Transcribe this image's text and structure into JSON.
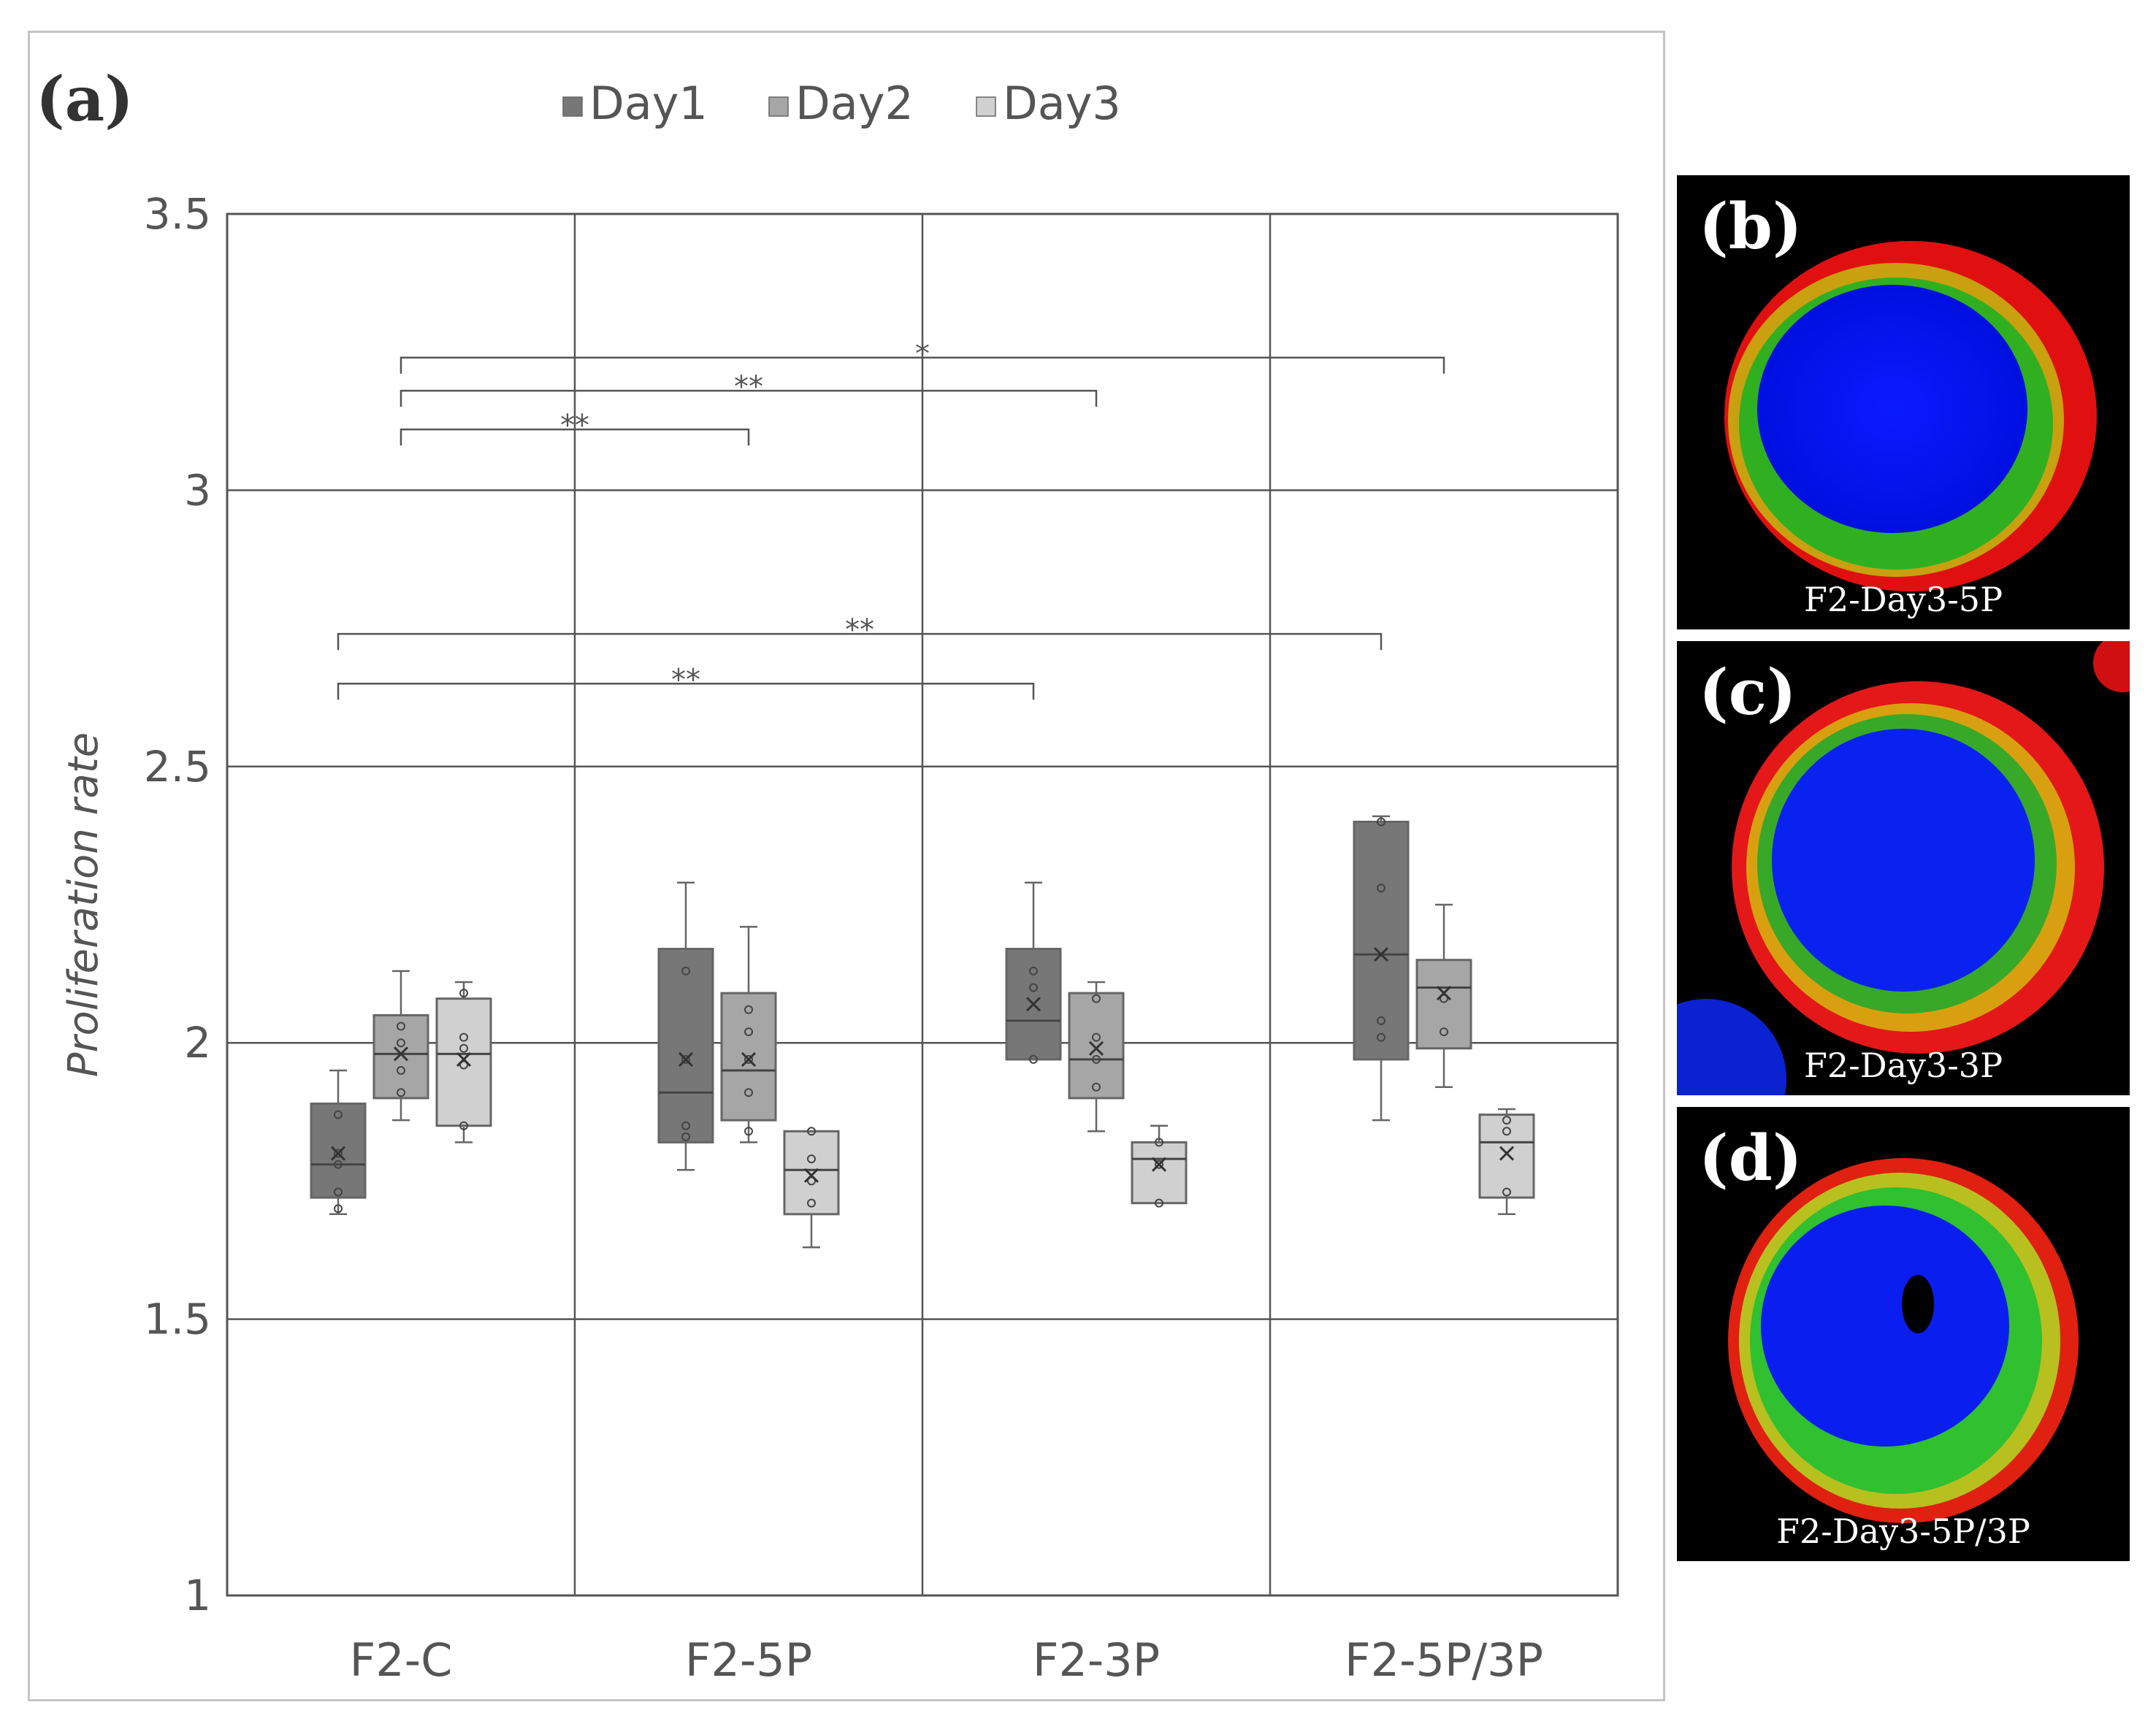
{
  "panel_label": "(a)",
  "chart_data": {
    "type": "box",
    "xlabel": "",
    "ylabel": "Proliferation rate",
    "ylim": [
      1,
      3.5
    ],
    "yticks": [
      "1",
      "1.5",
      "2",
      "2.5",
      "3",
      "3.5"
    ],
    "categories": [
      "F2-C",
      "F2-5P",
      "F2-3P",
      "F2-5P/3P"
    ],
    "grid": true,
    "legend_position": "top",
    "series": [
      {
        "name": "Day1",
        "color": "#777777",
        "boxes": [
          {
            "min": 1.69,
            "q1": 1.72,
            "median": 1.78,
            "q3": 1.89,
            "max": 1.95,
            "mean": 1.8,
            "points": [
              1.7,
              1.73,
              1.78,
              1.8,
              1.87
            ]
          },
          {
            "min": 1.77,
            "q1": 1.82,
            "median": 1.91,
            "q3": 2.17,
            "max": 2.29,
            "mean": 1.97,
            "points": [
              1.83,
              1.85,
              1.97,
              2.13
            ]
          },
          {
            "min": 1.97,
            "q1": 1.97,
            "median": 2.04,
            "q3": 2.17,
            "max": 2.29,
            "mean": 2.07,
            "points": [
              1.97,
              2.1,
              2.13
            ]
          },
          {
            "min": 1.86,
            "q1": 1.97,
            "median": 2.16,
            "q3": 2.4,
            "max": 2.41,
            "mean": 2.16,
            "points": [
              2.01,
              2.04,
              2.28,
              2.4
            ]
          }
        ]
      },
      {
        "name": "Day2",
        "color": "#a6a6a6",
        "boxes": [
          {
            "min": 1.86,
            "q1": 1.9,
            "median": 1.98,
            "q3": 2.05,
            "max": 2.13,
            "mean": 1.98,
            "points": [
              1.91,
              1.95,
              2.0,
              2.03
            ]
          },
          {
            "min": 1.82,
            "q1": 1.86,
            "median": 1.95,
            "q3": 2.09,
            "max": 2.21,
            "mean": 1.97,
            "points": [
              1.84,
              1.91,
              1.97,
              2.02,
              2.06
            ]
          },
          {
            "min": 1.84,
            "q1": 1.9,
            "median": 1.97,
            "q3": 2.09,
            "max": 2.11,
            "mean": 1.99,
            "points": [
              1.92,
              1.97,
              2.01,
              2.08
            ]
          },
          {
            "min": 1.92,
            "q1": 1.99,
            "median": 2.1,
            "q3": 2.15,
            "max": 2.25,
            "mean": 2.09,
            "points": [
              2.02,
              2.08
            ]
          }
        ]
      },
      {
        "name": "Day3",
        "color": "#d0d0d0",
        "boxes": [
          {
            "min": 1.82,
            "q1": 1.85,
            "median": 1.98,
            "q3": 2.08,
            "max": 2.11,
            "mean": 1.97,
            "points": [
              1.85,
              1.96,
              1.99,
              2.01,
              2.09
            ]
          },
          {
            "min": 1.63,
            "q1": 1.69,
            "median": 1.77,
            "q3": 1.84,
            "max": 1.84,
            "mean": 1.76,
            "points": [
              1.71,
              1.75,
              1.79,
              1.84
            ]
          },
          {
            "min": 1.71,
            "q1": 1.71,
            "median": 1.79,
            "q3": 1.82,
            "max": 1.85,
            "mean": 1.78,
            "points": [
              1.71,
              1.78,
              1.82
            ]
          },
          {
            "min": 1.69,
            "q1": 1.72,
            "median": 1.82,
            "q3": 1.87,
            "max": 1.88,
            "mean": 1.8,
            "points": [
              1.73,
              1.84,
              1.86
            ]
          }
        ]
      }
    ],
    "significance": [
      {
        "label": "*",
        "from": 0,
        "to": 3,
        "y": 3.24,
        "series": "Day2"
      },
      {
        "label": "**",
        "from": 0,
        "to": 2,
        "y": 3.18,
        "series": "Day2"
      },
      {
        "label": "**",
        "from": 0,
        "to": 1,
        "y": 3.11,
        "series": "Day2"
      },
      {
        "label": "**",
        "from": 0,
        "to": 3,
        "y": 2.74,
        "series": "Day1"
      },
      {
        "label": "**",
        "from": 0,
        "to": 2,
        "y": 2.65,
        "series": "Day1"
      }
    ]
  },
  "images": [
    {
      "letter": "(b)",
      "caption": "F2-Day3-5P"
    },
    {
      "letter": "(c)",
      "caption": "F2-Day3-3P"
    },
    {
      "letter": "(d)",
      "caption": "F2-Day3-5P/3P"
    }
  ]
}
